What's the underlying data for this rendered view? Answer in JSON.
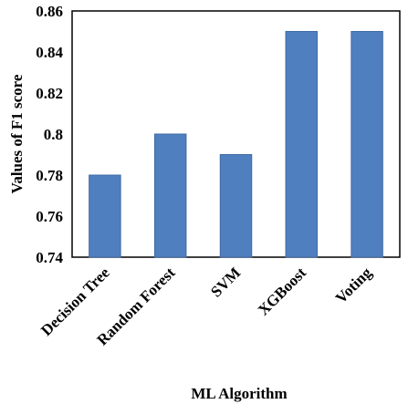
{
  "chart_data": {
    "type": "bar",
    "categories": [
      "Decision Tree",
      "Random Forest",
      "SVM",
      "XGBoost",
      "Voting"
    ],
    "values": [
      0.78,
      0.8,
      0.79,
      0.85,
      0.85
    ],
    "title": "",
    "xlabel": "ML Algorithm",
    "ylabel": "Values of F1 score",
    "ylim": [
      0.74,
      0.86
    ],
    "yticks": [
      "0.74",
      "0.76",
      "0.78",
      "0.8",
      "0.82",
      "0.84",
      "0.86"
    ],
    "grid": false,
    "legend": "none",
    "bar_color": "#4f7fbf",
    "bar_border_color": "#3f6aa5"
  }
}
